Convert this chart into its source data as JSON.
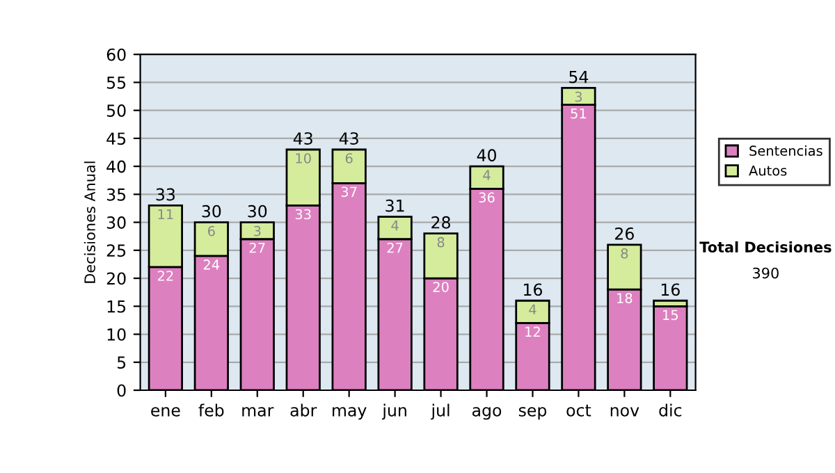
{
  "chart_data": {
    "type": "bar",
    "stacked": true,
    "ylabel": "Decisiones Anual",
    "categories": [
      "ene",
      "feb",
      "mar",
      "abr",
      "may",
      "jun",
      "jul",
      "ago",
      "sep",
      "oct",
      "nov",
      "dic"
    ],
    "series": [
      {
        "name": "Sentencias",
        "color": "#dd80c0",
        "values": [
          22,
          24,
          27,
          33,
          37,
          27,
          20,
          36,
          12,
          51,
          18,
          15
        ],
        "value_labels": [
          "22",
          "24",
          "27",
          "33",
          "37",
          "27",
          "20",
          "36",
          "12",
          "51",
          "18",
          "15"
        ]
      },
      {
        "name": "Autos",
        "color": "#d4ec9c",
        "values": [
          11,
          6,
          3,
          10,
          6,
          4,
          8,
          4,
          4,
          3,
          8,
          1
        ],
        "value_labels": [
          "11",
          "6",
          "3",
          "10",
          "6",
          "4",
          "8",
          "4",
          "4",
          "3",
          "8",
          null
        ]
      }
    ],
    "totals": [
      "33",
      "30",
      "30",
      "43",
      "43",
      "31",
      "28",
      "40",
      "16",
      "54",
      "26",
      "16"
    ],
    "ylim": [
      0,
      60
    ],
    "yticks": [
      0,
      5,
      10,
      15,
      20,
      25,
      30,
      35,
      40,
      45,
      50,
      55,
      60
    ],
    "grid": "y",
    "legend": "right",
    "annotations": [
      "Total Decisiones",
      "390"
    ]
  }
}
